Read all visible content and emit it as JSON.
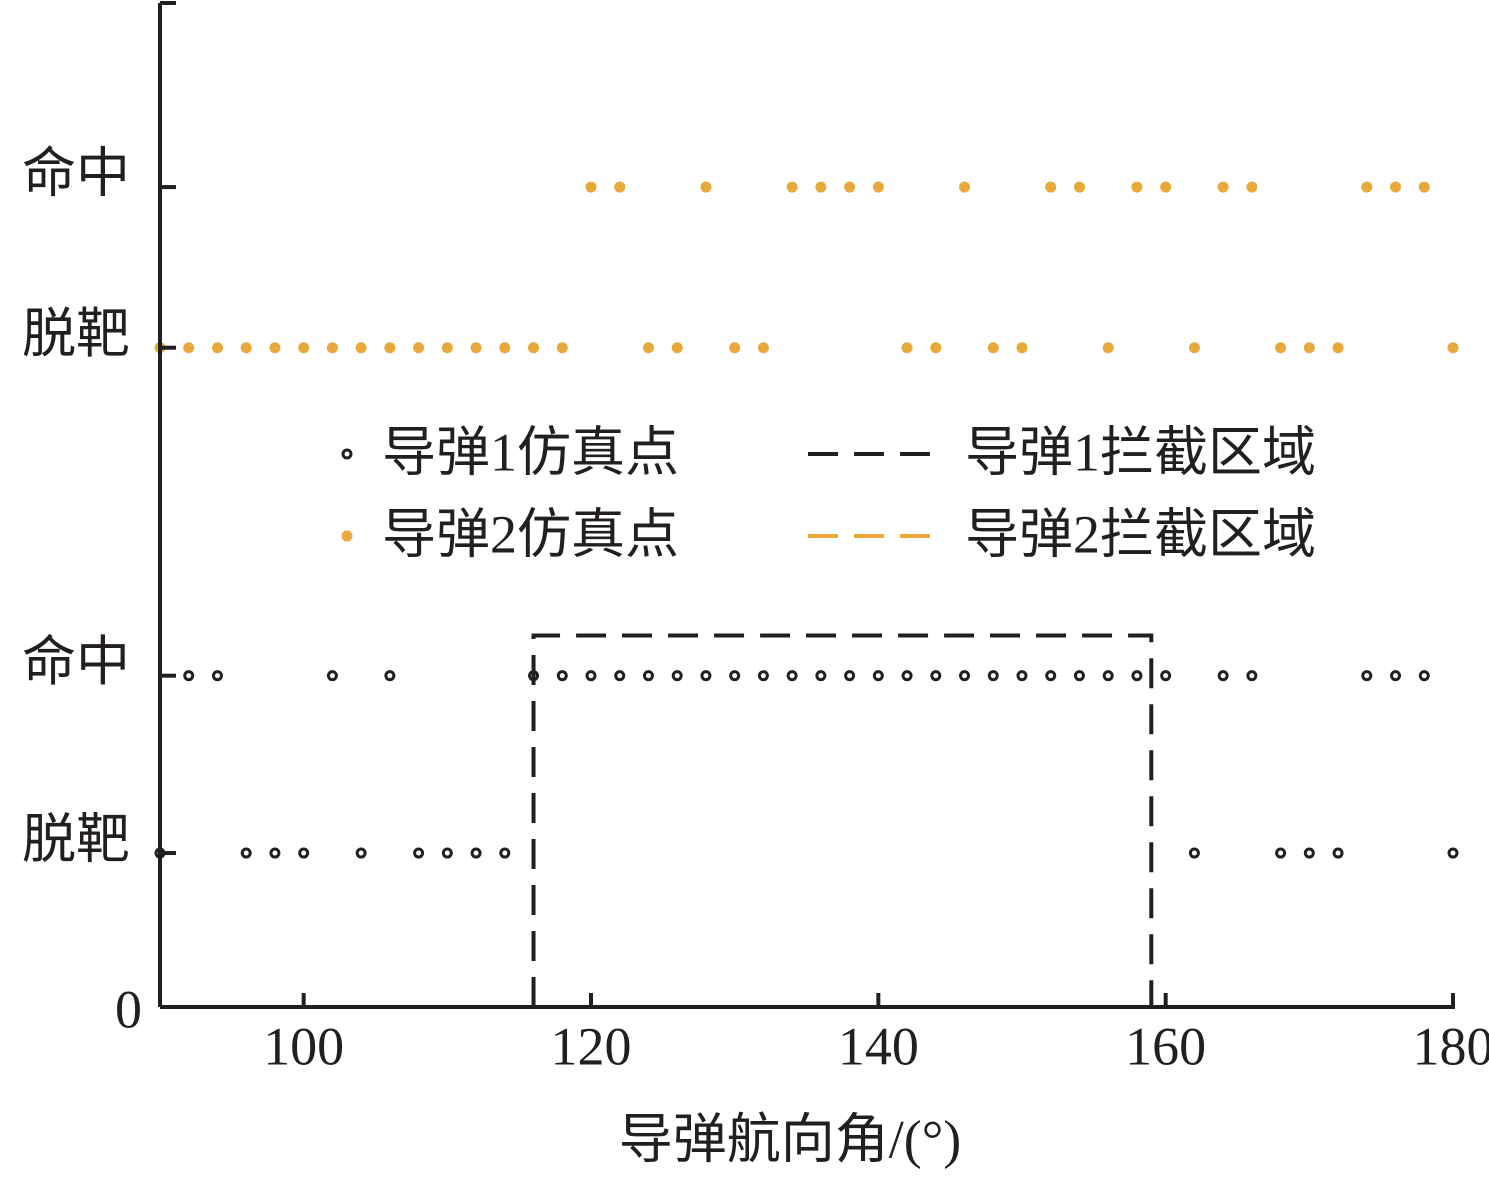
{
  "chart_data": {
    "type": "scatter",
    "xlabel": "导弹航向角/(°)",
    "xlim": [
      90,
      180
    ],
    "xticks": [
      100,
      120,
      140,
      160,
      180
    ],
    "ylim": [
      0,
      6
    ],
    "yticks": [
      0,
      {
        "value": 0.92,
        "label": "脱靶"
      },
      {
        "value": 1.98,
        "label": "命中"
      },
      {
        "value": 3.94,
        "label": "脱靶"
      },
      {
        "value": 4.9,
        "label": "命中"
      }
    ],
    "series": [
      {
        "name": "导弹1仿真点",
        "type": "scatter",
        "color": "#231f20",
        "x": [
          90,
          92,
          94,
          96,
          98,
          100,
          102,
          104,
          106,
          108,
          110,
          112,
          114,
          116,
          118,
          120,
          122,
          124,
          126,
          128,
          130,
          132,
          134,
          136,
          138,
          140,
          142,
          144,
          146,
          148,
          150,
          152,
          154,
          156,
          158,
          160,
          162,
          164,
          166,
          168,
          170,
          172,
          174,
          176,
          178,
          180
        ],
        "values": [
          0.92,
          1.98,
          1.98,
          0.92,
          0.92,
          0.92,
          1.98,
          0.92,
          1.98,
          0.92,
          0.92,
          0.92,
          0.92,
          1.98,
          1.98,
          1.98,
          1.98,
          1.98,
          1.98,
          1.98,
          1.98,
          1.98,
          1.98,
          1.98,
          1.98,
          1.98,
          1.98,
          1.98,
          1.98,
          1.98,
          1.98,
          1.98,
          1.98,
          1.98,
          1.98,
          1.98,
          0.92,
          1.98,
          1.98,
          0.92,
          0.92,
          0.92,
          1.98,
          1.98,
          1.98,
          0.92
        ]
      },
      {
        "name": "导弹2仿真点",
        "type": "scatter",
        "color": "#e8a93a",
        "x": [
          90,
          92,
          94,
          96,
          98,
          100,
          102,
          104,
          106,
          108,
          110,
          112,
          114,
          116,
          118,
          120,
          122,
          124,
          126,
          128,
          130,
          132,
          134,
          136,
          138,
          140,
          142,
          144,
          146,
          148,
          150,
          152,
          154,
          156,
          158,
          160,
          162,
          164,
          166,
          168,
          170,
          172,
          174,
          176,
          178,
          180
        ],
        "values": [
          3.94,
          3.94,
          3.94,
          3.94,
          3.94,
          3.94,
          3.94,
          3.94,
          3.94,
          3.94,
          3.94,
          3.94,
          3.94,
          3.94,
          3.94,
          4.9,
          4.9,
          3.94,
          3.94,
          4.9,
          3.94,
          3.94,
          4.9,
          4.9,
          4.9,
          4.9,
          3.94,
          3.94,
          4.9,
          3.94,
          3.94,
          4.9,
          4.9,
          3.94,
          4.9,
          4.9,
          3.94,
          4.9,
          4.9,
          3.94,
          3.94,
          3.94,
          4.9,
          4.9,
          4.9,
          3.94
        ]
      },
      {
        "name": "导弹1拦截区域",
        "type": "line",
        "color": "#231f20",
        "x": [
          116,
          116,
          159,
          159
        ],
        "values": [
          0,
          2.22,
          2.22,
          0
        ]
      },
      {
        "name": "导弹2拦截区域",
        "type": "line",
        "color": "#e8a93a",
        "x": [],
        "values": []
      }
    ]
  }
}
